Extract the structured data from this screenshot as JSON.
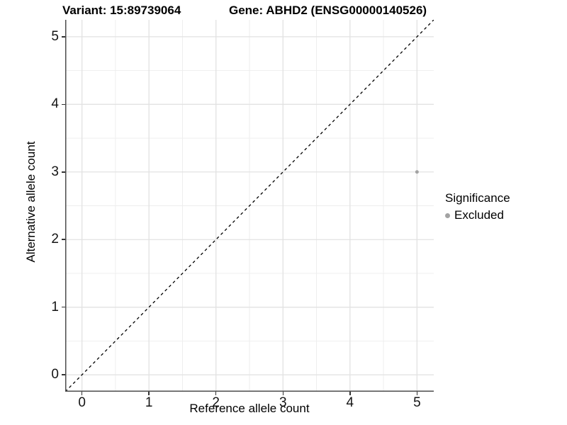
{
  "figure": {
    "title_left": "Variant: 15:89739064",
    "title_right": "Gene: ABHD2 (ENSG00000140526)"
  },
  "chart_data": {
    "type": "scatter",
    "title": "Variant: 15:89739064 — Gene: ABHD2 (ENSG00000140526)",
    "xlabel": "Reference allele count",
    "ylabel": "Alternative allele count",
    "xlim": [
      -0.25,
      5.25
    ],
    "ylim": [
      -0.25,
      5.25
    ],
    "xticks": [
      0,
      1,
      2,
      3,
      4,
      5
    ],
    "yticks": [
      0,
      1,
      2,
      3,
      4,
      5
    ],
    "grid": {
      "major": true,
      "minor": true,
      "minor_step": 0.5
    },
    "identity_line": {
      "style": "dashed",
      "slope": 1,
      "intercept": 0,
      "color": "#000000"
    },
    "series": [
      {
        "name": "Excluded",
        "color": "#a3a3a3",
        "point_radius": 2.5,
        "points": [
          {
            "x": 5,
            "y": 3
          }
        ]
      }
    ],
    "legend": {
      "title": "Significance",
      "position": "right",
      "items": [
        {
          "label": "Excluded",
          "color": "#a3a3a3"
        }
      ]
    }
  },
  "colors": {
    "background": "#ffffff",
    "grid_major": "#e2e2e2",
    "grid_minor": "#ededed",
    "axis_line": "#4d4d4d",
    "tick_mark": "#333333",
    "tick_text": "#141414"
  }
}
